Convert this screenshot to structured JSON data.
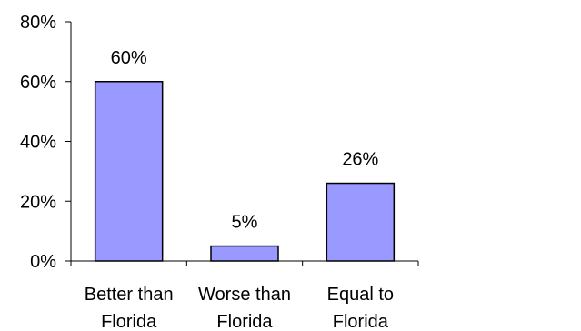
{
  "chart_data": {
    "type": "bar",
    "title": "",
    "xlabel": "",
    "ylabel": "",
    "categories": [
      [
        "Better than",
        "Florida"
      ],
      [
        "Worse than",
        "Florida"
      ],
      [
        "Equal to",
        "Florida"
      ]
    ],
    "values": [
      60,
      5,
      26
    ],
    "data_labels": [
      "60%",
      "5%",
      "26%"
    ],
    "ylim": [
      0,
      80
    ],
    "yticks": [
      0,
      20,
      40,
      60,
      80
    ],
    "ytick_labels": [
      "0%",
      "20%",
      "40%",
      "60%",
      "80%"
    ],
    "grid": false,
    "legend": "none",
    "colors": {
      "bar_fill": "#9999ff",
      "bar_stroke": "#000000",
      "axis": "#000000"
    }
  }
}
